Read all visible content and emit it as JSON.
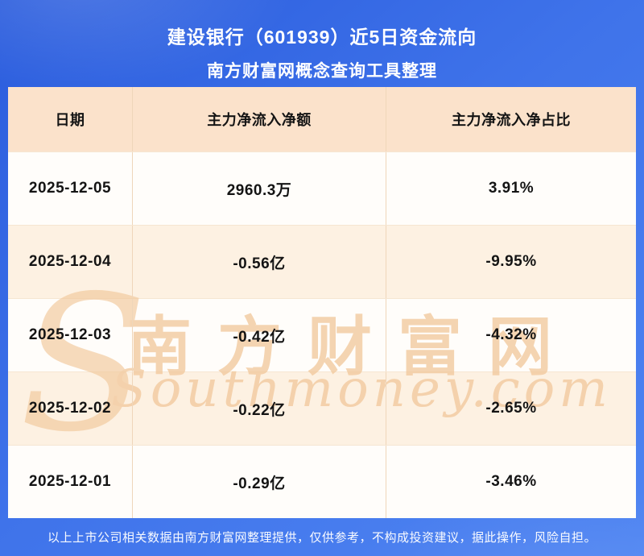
{
  "header": {
    "title": "建设银行（601939）近5日资金流向",
    "subtitle": "南方财富网概念查询工具整理"
  },
  "chart_data": {
    "type": "table",
    "title": "建设银行（601939）近5日资金流向",
    "subtitle": "南方财富网概念查询工具整理",
    "columns": [
      "日期",
      "主力净流入净额",
      "主力净流入净占比"
    ],
    "rows": [
      [
        "2025-12-05",
        "2960.3万",
        "3.91%"
      ],
      [
        "2025-12-04",
        "-0.56亿",
        "-9.95%"
      ],
      [
        "2025-12-03",
        "-0.42亿",
        "-4.32%"
      ],
      [
        "2025-12-02",
        "-0.22亿",
        "-2.65%"
      ],
      [
        "2025-12-01",
        "-0.29亿",
        "-3.46%"
      ]
    ]
  },
  "watermark": {
    "monogram": "S",
    "cn": "南方财富网",
    "en": "Southmoney.com"
  },
  "footer": {
    "disclaimer": "以上上市公司相关数据由南方财富网整理提供，仅供参考，不构成投资建议，据此操作，风险自担。"
  },
  "colors": {
    "background_top": "#2a5cdd",
    "background_bottom": "#4f85f2",
    "header_row": "#fbe2cb",
    "row_white": "#fffdfa",
    "row_cream": "#fdf1e2",
    "divider": "#efd6ba",
    "watermark": "#f2c99d",
    "cell_text": "#141414",
    "title_text": "#ffffff"
  }
}
